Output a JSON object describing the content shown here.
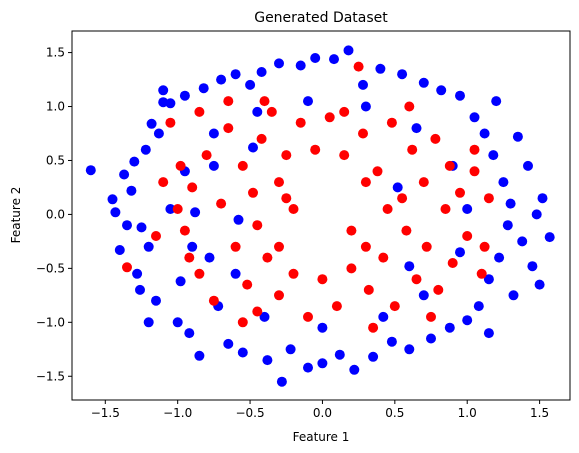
{
  "chart_data": {
    "type": "scatter",
    "title": "Generated Dataset",
    "xlabel": "Feature 1",
    "ylabel": "Feature 2",
    "xlim": [
      -1.73,
      1.71
    ],
    "ylim": [
      -1.72,
      1.7
    ],
    "xticks": [
      -1.5,
      -1.0,
      -0.5,
      0.0,
      0.5,
      1.0,
      1.5
    ],
    "yticks": [
      -1.5,
      -1.0,
      -0.5,
      0.0,
      0.5,
      1.0,
      1.5
    ],
    "grid": false,
    "legend": "none",
    "series": [
      {
        "color": "#0000ff",
        "values": [
          [
            -1.6,
            0.41
          ],
          [
            -1.45,
            0.14
          ],
          [
            -1.43,
            0.02
          ],
          [
            -1.4,
            -0.33
          ],
          [
            -1.37,
            0.37
          ],
          [
            -1.35,
            -0.1
          ],
          [
            -1.32,
            0.22
          ],
          [
            -1.3,
            0.49
          ],
          [
            -1.28,
            -0.55
          ],
          [
            -1.26,
            -0.7
          ],
          [
            -1.22,
            0.6
          ],
          [
            -1.2,
            -0.3
          ],
          [
            -1.18,
            0.84
          ],
          [
            -1.15,
            -0.8
          ],
          [
            -1.13,
            0.75
          ],
          [
            -1.1,
            1.04
          ],
          [
            -1.05,
            1.03
          ],
          [
            -1.0,
            -1.0
          ],
          [
            -0.95,
            1.1
          ],
          [
            -0.92,
            -1.1
          ],
          [
            -0.88,
            0.02
          ],
          [
            -0.85,
            -1.31
          ],
          [
            -0.82,
            1.17
          ],
          [
            -0.78,
            -0.4
          ],
          [
            -0.75,
            0.45
          ],
          [
            -0.7,
            1.25
          ],
          [
            -0.65,
            -1.2
          ],
          [
            -0.6,
            1.3
          ],
          [
            -0.58,
            -0.05
          ],
          [
            -0.55,
            -1.28
          ],
          [
            -0.5,
            1.2
          ],
          [
            -0.42,
            1.32
          ],
          [
            -0.38,
            -1.35
          ],
          [
            -0.3,
            1.4
          ],
          [
            -0.28,
            -1.55
          ],
          [
            -0.22,
            -1.25
          ],
          [
            -0.15,
            1.38
          ],
          [
            -0.1,
            -1.42
          ],
          [
            -0.05,
            1.45
          ],
          [
            0.0,
            -1.38
          ],
          [
            0.08,
            1.44
          ],
          [
            0.12,
            -1.3
          ],
          [
            0.18,
            1.52
          ],
          [
            0.22,
            -1.44
          ],
          [
            0.28,
            1.2
          ],
          [
            0.35,
            -1.32
          ],
          [
            0.4,
            1.35
          ],
          [
            0.48,
            -1.18
          ],
          [
            0.55,
            1.3
          ],
          [
            0.6,
            -1.25
          ],
          [
            0.7,
            1.22
          ],
          [
            0.75,
            -1.15
          ],
          [
            0.82,
            1.15
          ],
          [
            0.88,
            -1.05
          ],
          [
            0.95,
            1.1
          ],
          [
            1.0,
            -0.98
          ],
          [
            1.05,
            0.9
          ],
          [
            1.08,
            -0.85
          ],
          [
            1.12,
            0.75
          ],
          [
            1.15,
            -0.6
          ],
          [
            1.18,
            0.55
          ],
          [
            1.22,
            -0.4
          ],
          [
            1.25,
            0.3
          ],
          [
            1.28,
            -0.1
          ],
          [
            1.3,
            0.1
          ],
          [
            1.32,
            -0.75
          ],
          [
            1.35,
            0.72
          ],
          [
            1.38,
            -0.25
          ],
          [
            1.42,
            0.45
          ],
          [
            1.45,
            -0.48
          ],
          [
            1.48,
            0.0
          ],
          [
            1.5,
            -0.65
          ],
          [
            1.52,
            0.15
          ],
          [
            1.57,
            -0.21
          ],
          [
            -1.25,
            -0.12
          ],
          [
            -0.98,
            -0.62
          ],
          [
            -0.72,
            -0.85
          ],
          [
            -0.4,
            -0.95
          ],
          [
            0.0,
            -1.05
          ],
          [
            0.42,
            -0.95
          ],
          [
            0.7,
            -0.75
          ],
          [
            0.95,
            -0.35
          ],
          [
            1.0,
            0.05
          ],
          [
            0.9,
            0.45
          ],
          [
            0.65,
            0.8
          ],
          [
            0.3,
            1.0
          ],
          [
            -0.1,
            1.05
          ],
          [
            -0.45,
            0.95
          ],
          [
            -0.75,
            0.75
          ],
          [
            -0.95,
            0.4
          ],
          [
            -1.05,
            0.05
          ],
          [
            -0.9,
            -0.3
          ],
          [
            1.2,
            1.05
          ],
          [
            -1.2,
            -1.0
          ],
          [
            1.15,
            -1.1
          ],
          [
            -1.1,
            1.15
          ],
          [
            0.52,
            0.25
          ],
          [
            -0.6,
            -0.55
          ],
          [
            0.6,
            -0.48
          ],
          [
            -0.48,
            0.62
          ]
        ]
      },
      {
        "color": "#ff0000",
        "values": [
          [
            -1.35,
            -0.49
          ],
          [
            -1.05,
            0.85
          ],
          [
            -0.95,
            -0.15
          ],
          [
            -0.9,
            0.25
          ],
          [
            -0.85,
            -0.55
          ],
          [
            -0.8,
            0.55
          ],
          [
            -0.75,
            -0.8
          ],
          [
            -0.7,
            0.1
          ],
          [
            -0.65,
            0.8
          ],
          [
            -0.6,
            -0.3
          ],
          [
            -0.55,
            0.45
          ],
          [
            -0.52,
            -0.65
          ],
          [
            -0.48,
            0.2
          ],
          [
            -0.45,
            -0.9
          ],
          [
            -0.42,
            0.7
          ],
          [
            -0.38,
            -0.4
          ],
          [
            -0.35,
            0.95
          ],
          [
            -0.3,
            -0.75
          ],
          [
            -0.25,
            0.55
          ],
          [
            -0.2,
            -0.55
          ],
          [
            -0.15,
            0.85
          ],
          [
            -0.1,
            -0.95
          ],
          [
            -0.05,
            0.6
          ],
          [
            0.0,
            -0.6
          ],
          [
            0.05,
            0.9
          ],
          [
            0.1,
            -0.85
          ],
          [
            0.15,
            0.55
          ],
          [
            0.2,
            -0.5
          ],
          [
            0.25,
            1.37
          ],
          [
            0.28,
            0.75
          ],
          [
            0.32,
            -0.7
          ],
          [
            0.38,
            0.4
          ],
          [
            0.42,
            -0.4
          ],
          [
            0.48,
            0.85
          ],
          [
            0.5,
            -0.85
          ],
          [
            0.55,
            0.15
          ],
          [
            0.58,
            -0.15
          ],
          [
            0.62,
            0.6
          ],
          [
            0.65,
            -0.6
          ],
          [
            0.7,
            0.3
          ],
          [
            0.72,
            -0.3
          ],
          [
            0.78,
            0.7
          ],
          [
            0.8,
            -0.7
          ],
          [
            0.85,
            0.05
          ],
          [
            0.88,
            0.45
          ],
          [
            0.9,
            -0.45
          ],
          [
            0.95,
            0.2
          ],
          [
            1.0,
            -0.2
          ],
          [
            1.05,
            0.6
          ],
          [
            1.1,
            -0.55
          ],
          [
            -1.0,
            0.05
          ],
          [
            -0.98,
            0.45
          ],
          [
            -0.92,
            -0.4
          ],
          [
            0.45,
            0.05
          ],
          [
            -0.45,
            -0.1
          ],
          [
            0.3,
            0.3
          ],
          [
            -0.3,
            0.3
          ],
          [
            0.3,
            -0.3
          ],
          [
            -0.3,
            -0.3
          ],
          [
            1.05,
            0.4
          ],
          [
            -0.85,
            0.95
          ],
          [
            0.6,
            1.0
          ],
          [
            -0.55,
            -1.0
          ],
          [
            -0.25,
            0.15
          ],
          [
            0.15,
            0.95
          ],
          [
            -0.2,
            0.05
          ],
          [
            0.2,
            -0.15
          ],
          [
            -0.65,
            1.05
          ],
          [
            0.75,
            -0.95
          ],
          [
            1.15,
            0.15
          ],
          [
            -1.15,
            -0.2
          ],
          [
            0.35,
            -1.05
          ],
          [
            -0.4,
            1.05
          ],
          [
            1.12,
            -0.3
          ],
          [
            -1.1,
            0.3
          ]
        ]
      }
    ]
  }
}
